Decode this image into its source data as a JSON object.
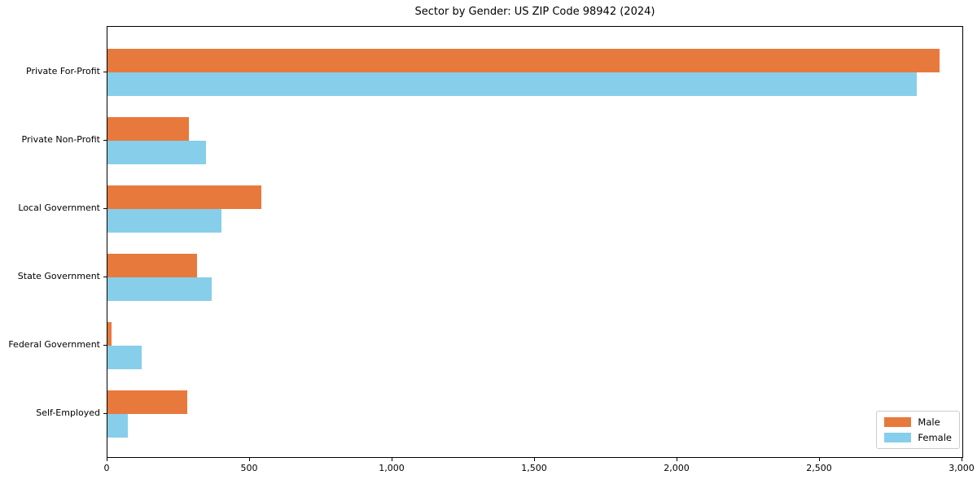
{
  "figure": {
    "background": "#ffffff"
  },
  "chart_data": {
    "type": "bar",
    "orientation": "horizontal",
    "title": "Sector by Gender: US ZIP Code 98942 (2024)",
    "categories": [
      "Private For-Profit",
      "Private Non-Profit",
      "Local Government",
      "State Government",
      "Federal Government",
      "Self-Employed"
    ],
    "series": [
      {
        "name": "Male",
        "color": "#E8793C",
        "values": [
          2920,
          285,
          540,
          315,
          15,
          280
        ]
      },
      {
        "name": "Female",
        "color": "#87CEEB",
        "values": [
          2840,
          345,
          400,
          365,
          120,
          70
        ]
      }
    ],
    "xlim": [
      0,
      3000
    ],
    "xticks": [
      0,
      500,
      1000,
      1500,
      2000,
      2500,
      3000
    ],
    "xtick_labels": [
      "0",
      "500",
      "1,000",
      "1,500",
      "2,000",
      "2,500",
      "3,000"
    ],
    "grid": false,
    "legend": {
      "position": "lower-right",
      "entries": [
        "Male",
        "Female"
      ]
    },
    "axis_color": "#000000",
    "legend_border_color": "#cccccc"
  }
}
